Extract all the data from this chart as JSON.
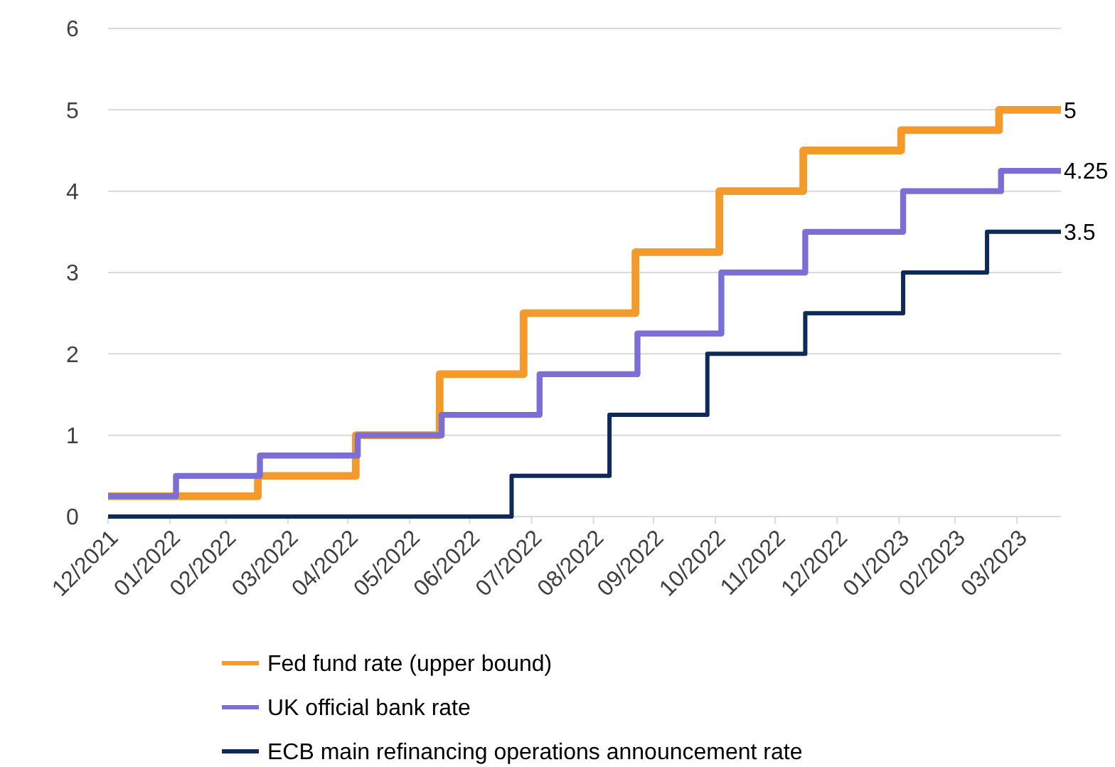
{
  "chart_data": {
    "type": "step",
    "series": [
      {
        "name": "Fed fund rate (upper bound)",
        "color": "#f39a2b",
        "x": [
          "2021-12-31",
          "2022-03-16",
          "2022-05-04",
          "2022-06-15",
          "2022-07-27",
          "2022-09-21",
          "2022-11-02",
          "2022-12-14",
          "2023-02-01",
          "2023-03-22",
          "2023-04-22"
        ],
        "values": [
          0.25,
          0.5,
          1,
          1.75,
          2.5,
          3.25,
          4,
          4.5,
          4.75,
          5,
          5
        ]
      },
      {
        "name": "UK official bank rate",
        "color": "#7b6fd6",
        "x": [
          "2021-12-31",
          "2022-02-03",
          "2022-03-17",
          "2022-05-05",
          "2022-06-16",
          "2022-08-04",
          "2022-09-22",
          "2022-11-03",
          "2022-12-15",
          "2023-02-02",
          "2023-03-23",
          "2023-04-22"
        ],
        "values": [
          0.25,
          0.5,
          0.75,
          1,
          1.25,
          1.75,
          2.25,
          3,
          3.5,
          4,
          4.25,
          4.25
        ]
      },
      {
        "name": "ECB main refinancing operations announcement rate",
        "color": "#0e2a5a",
        "x": [
          "2021-12-31",
          "2022-07-21",
          "2022-09-08",
          "2022-10-27",
          "2022-12-15",
          "2023-02-02",
          "2023-03-16",
          "2023-04-22"
        ],
        "values": [
          0,
          0.5,
          1.25,
          2,
          2.5,
          3,
          3.5,
          3.5
        ]
      }
    ],
    "xlim": [
      "2021-12-31",
      "2023-04-22"
    ],
    "xticks": [
      {
        "value": "2021-12-31",
        "label": "12/2021"
      },
      {
        "value": "2022-01-31",
        "label": "01/2022"
      },
      {
        "value": "2022-02-28",
        "label": "02/2022"
      },
      {
        "value": "2022-03-31",
        "label": "03/2022"
      },
      {
        "value": "2022-04-30",
        "label": "04/2022"
      },
      {
        "value": "2022-05-31",
        "label": "05/2022"
      },
      {
        "value": "2022-06-30",
        "label": "06/2022"
      },
      {
        "value": "2022-07-31",
        "label": "07/2022"
      },
      {
        "value": "2022-08-31",
        "label": "08/2022"
      },
      {
        "value": "2022-09-30",
        "label": "09/2022"
      },
      {
        "value": "2022-10-31",
        "label": "10/2022"
      },
      {
        "value": "2022-11-30",
        "label": "11/2022"
      },
      {
        "value": "2022-12-31",
        "label": "12/2022"
      },
      {
        "value": "2023-01-31",
        "label": "01/2023"
      },
      {
        "value": "2023-02-28",
        "label": "02/2023"
      },
      {
        "value": "2023-03-31",
        "label": "03/2023"
      }
    ],
    "ylim": [
      0,
      6
    ],
    "yticks": [
      0,
      1,
      2,
      3,
      4,
      5,
      6
    ],
    "grid": "y",
    "legend": "bottom",
    "line_style": "solid",
    "annotations": [
      {
        "text": "5",
        "x": "2023-04-22",
        "y": 5
      },
      {
        "text": "4.25",
        "x": "2023-04-22",
        "y": 4.25
      },
      {
        "text": "3.5",
        "x": "2023-04-22",
        "y": 3.5
      }
    ]
  }
}
